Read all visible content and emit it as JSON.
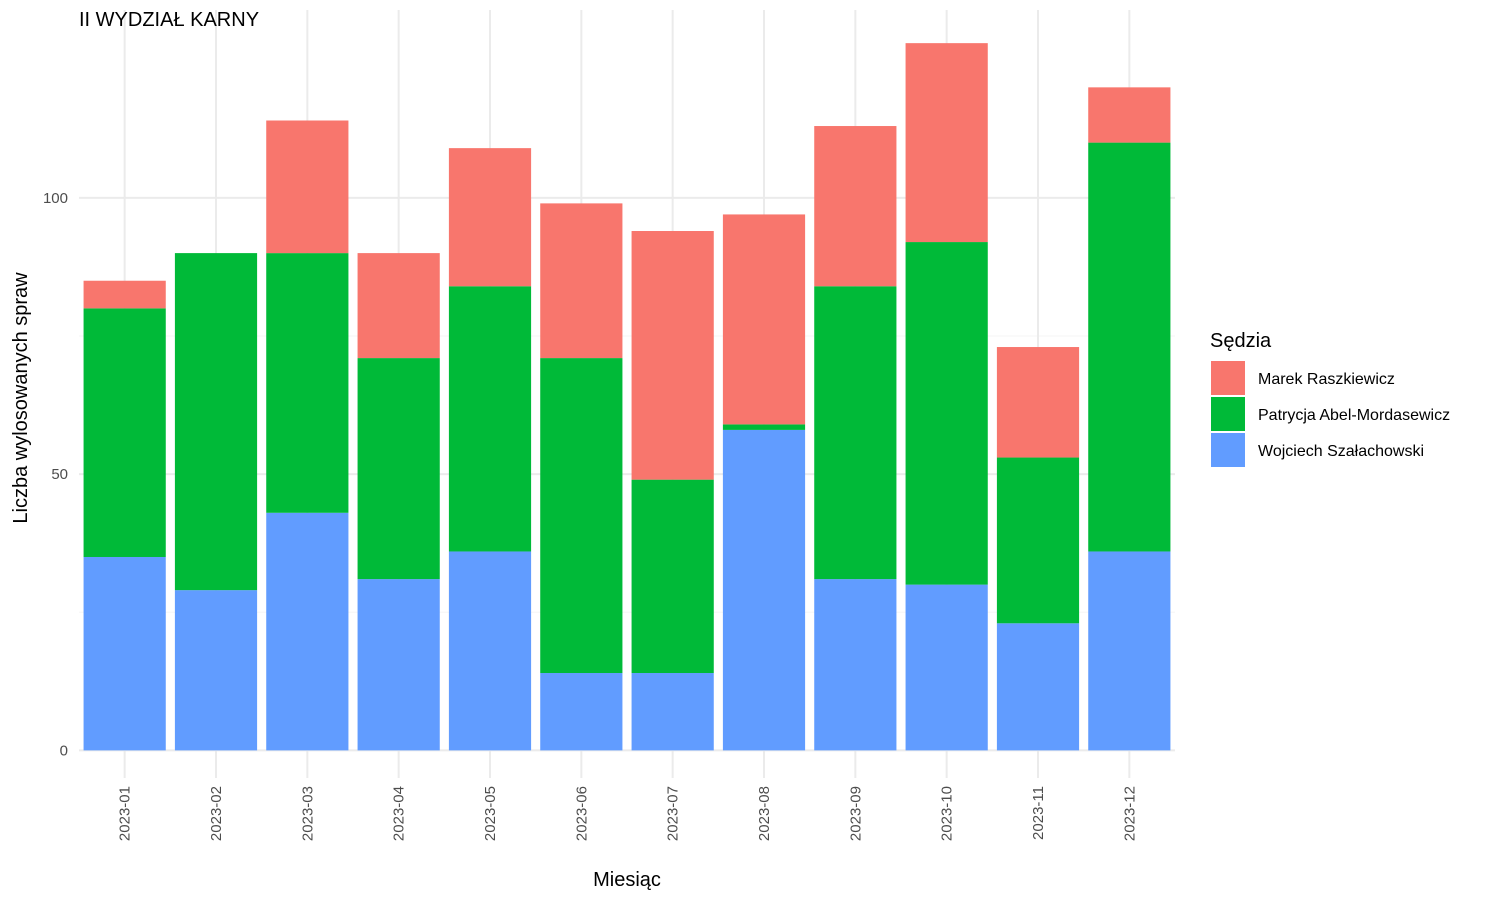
{
  "chart_data": {
    "type": "bar",
    "stacked": true,
    "title": "II WYDZIAŁ KARNY",
    "xlabel": "Miesiąc",
    "ylabel": "Liczba wylosowanych spraw",
    "categories": [
      "2023-01",
      "2023-02",
      "2023-03",
      "2023-04",
      "2023-05",
      "2023-06",
      "2023-07",
      "2023-08",
      "2023-09",
      "2023-10",
      "2023-11",
      "2023-12"
    ],
    "series": [
      {
        "name": "Wojciech Szałachowski",
        "color": "#619cff",
        "values": [
          35,
          29,
          43,
          31,
          36,
          14,
          14,
          58,
          31,
          30,
          23,
          36
        ]
      },
      {
        "name": "Patrycja Abel-Mordasewicz",
        "color": "#00ba38",
        "values": [
          45,
          61,
          47,
          40,
          48,
          57,
          35,
          1,
          53,
          62,
          30,
          74
        ]
      },
      {
        "name": "Marek Raszkiewicz",
        "color": "#f8766d",
        "values": [
          5,
          0,
          24,
          19,
          25,
          28,
          45,
          38,
          29,
          36,
          20,
          10
        ]
      }
    ],
    "yticks": [
      0,
      50,
      100
    ],
    "ylim": [
      -5,
      134
    ],
    "grid": true,
    "legend": {
      "title": "Sędzia",
      "placement": "right",
      "order": [
        "Marek Raszkiewicz",
        "Patrycja Abel-Mordasewicz",
        "Wojciech Szałachowski"
      ]
    }
  }
}
